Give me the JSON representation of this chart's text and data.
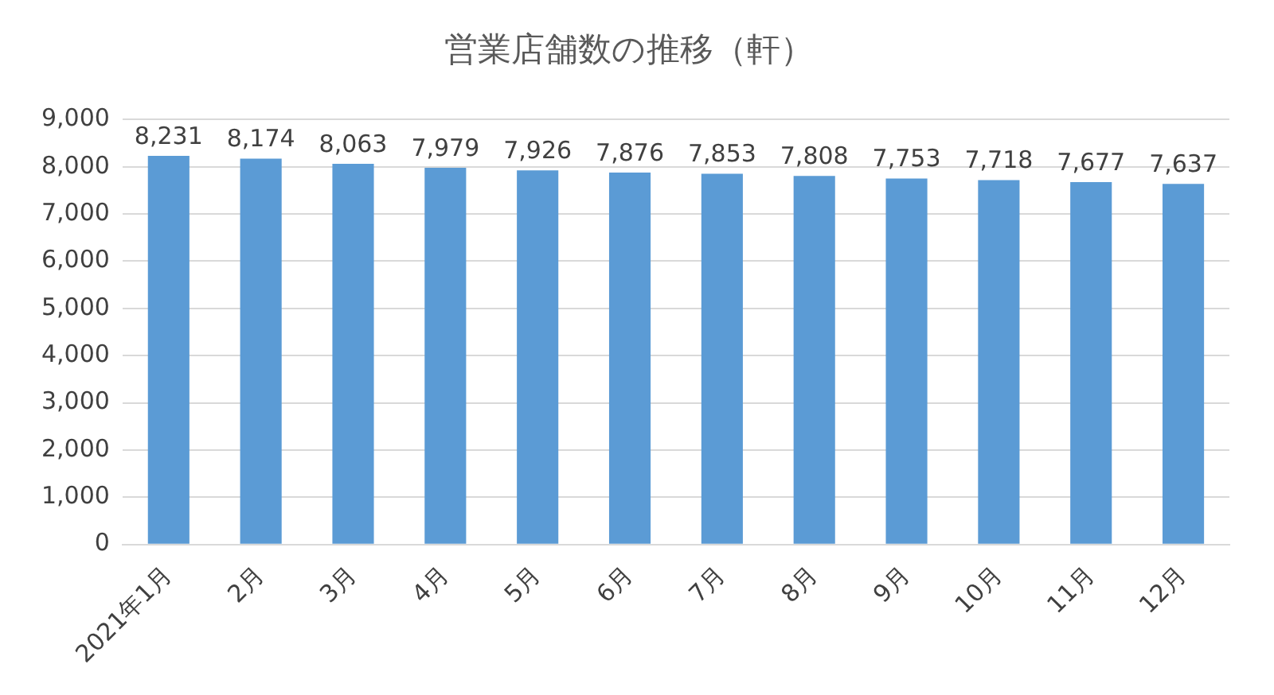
{
  "chart_data": {
    "type": "bar",
    "title": "営業店舗数の推移（軒）",
    "categories": [
      "2021年1月",
      "2月",
      "3月",
      "4月",
      "5月",
      "6月",
      "7月",
      "8月",
      "9月",
      "10月",
      "11月",
      "12月"
    ],
    "values": [
      8231,
      8174,
      8063,
      7979,
      7926,
      7876,
      7853,
      7808,
      7753,
      7718,
      7677,
      7637
    ],
    "value_labels": [
      "8,231",
      "8,174",
      "8,063",
      "7,979",
      "7,926",
      "7,876",
      "7,853",
      "7,808",
      "7,753",
      "7,718",
      "7,677",
      "7,637"
    ],
    "color": "#5b9bd5",
    "ylim": [
      0,
      9000
    ],
    "yticks": [
      0,
      {
        "value": 1000,
        "label": "1,000"
      },
      {
        "value": 2000,
        "label": "2,000"
      },
      {
        "value": 3000,
        "label": "3,000"
      },
      {
        "value": 4000,
        "label": "4,000"
      },
      {
        "value": 5000,
        "label": "5,000"
      },
      {
        "value": 6000,
        "label": "6,000"
      },
      {
        "value": 7000,
        "label": "7,000"
      },
      {
        "value": 8000,
        "label": "8,000"
      },
      {
        "value": 9000,
        "label": "9,000"
      }
    ],
    "grid": "y"
  }
}
